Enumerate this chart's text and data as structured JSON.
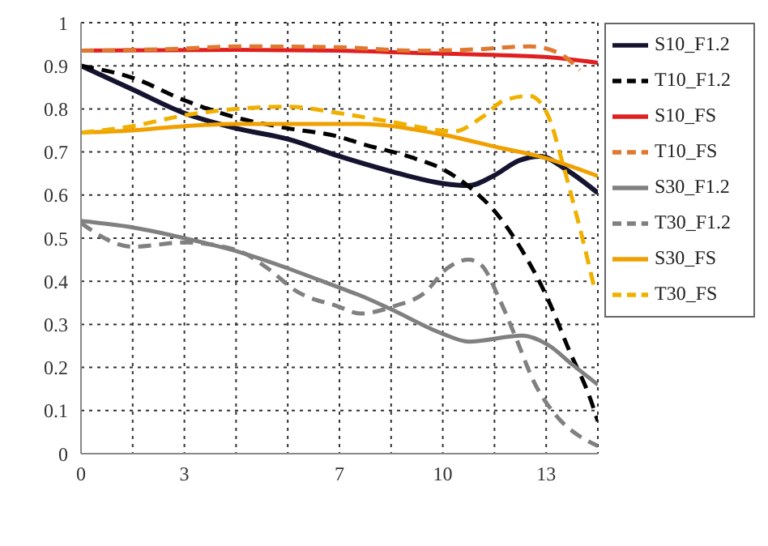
{
  "chart_data": {
    "type": "line",
    "xlim": [
      0,
      14.4
    ],
    "ylim": [
      0,
      1
    ],
    "xticks": [
      0,
      {
        "value": 1.44,
        "label": null
      },
      {
        "value": 2.88,
        "label": "3"
      },
      {
        "value": 4.32,
        "label": null
      },
      {
        "value": 5.76,
        "label": null
      },
      {
        "value": 7.2,
        "label": "7"
      },
      {
        "value": 8.64,
        "label": null
      },
      {
        "value": 10.08,
        "label": "10"
      },
      {
        "value": 11.52,
        "label": null
      },
      {
        "value": 12.96,
        "label": "13"
      },
      {
        "value": 14.4,
        "label": null
      }
    ],
    "yticks": [
      0,
      0.1,
      0.2,
      0.3,
      0.4,
      0.5,
      0.6,
      0.7,
      0.8,
      0.9,
      1
    ],
    "grid": true,
    "legend": "top right",
    "marker": "none",
    "series": [
      {
        "name": "S10_F1.2",
        "color": "#141430",
        "line_style": "solid",
        "x": [
          0,
          1.44,
          2.88,
          4.32,
          5.76,
          7.2,
          8.64,
          10.08,
          10.8,
          11.5,
          12.2,
          12.8,
          13.5,
          14.4
        ],
        "values": [
          0.9,
          0.845,
          0.79,
          0.755,
          0.73,
          0.69,
          0.655,
          0.627,
          0.622,
          0.645,
          0.68,
          0.69,
          0.66,
          0.605
        ]
      },
      {
        "name": "T10_F1.2",
        "color": "#000000",
        "line_style": "dashed",
        "x": [
          0,
          1.44,
          2.88,
          4.32,
          5.76,
          7.2,
          7.78,
          9.3,
          10.08,
          10.8,
          11.6,
          12.3,
          13.0,
          13.6,
          14.2,
          14.4
        ],
        "values": [
          0.9,
          0.872,
          0.82,
          0.78,
          0.755,
          0.735,
          0.72,
          0.685,
          0.66,
          0.62,
          0.555,
          0.47,
          0.36,
          0.24,
          0.125,
          0.075
        ]
      },
      {
        "name": "S10_FS",
        "color": "#e02020",
        "line_style": "solid",
        "x": [
          0,
          4.32,
          7.2,
          9.3,
          11.6,
          13.0,
          14.4
        ],
        "values": [
          0.935,
          0.937,
          0.935,
          0.93,
          0.925,
          0.92,
          0.907
        ]
      },
      {
        "name": "T10_FS",
        "color": "#e07830",
        "line_style": "dashed",
        "x": [
          0,
          2.88,
          4.32,
          7.2,
          9.3,
          11.0,
          12.5,
          13.3,
          13.9
        ],
        "values": [
          0.935,
          0.94,
          0.945,
          0.943,
          0.935,
          0.938,
          0.945,
          0.93,
          0.89
        ]
      },
      {
        "name": "S30_F1.2",
        "color": "#808080",
        "line_style": "solid",
        "x": [
          0,
          1.44,
          2.88,
          4.32,
          5.76,
          7.2,
          7.78,
          8.64,
          10.08,
          10.8,
          12.3,
          13.0,
          13.7,
          14.4
        ],
        "values": [
          0.54,
          0.525,
          0.5,
          0.47,
          0.43,
          0.385,
          0.367,
          0.335,
          0.278,
          0.26,
          0.274,
          0.253,
          0.206,
          0.16
        ]
      },
      {
        "name": "T30_F1.2",
        "color": "#808080",
        "line_style": "dashed",
        "x": [
          0,
          1.44,
          2.88,
          4.32,
          5.2,
          6.0,
          7.15,
          7.78,
          8.75,
          9.57,
          10.2,
          10.8,
          11.16,
          11.65,
          12.13,
          12.6,
          13.24,
          13.9,
          14.4
        ],
        "values": [
          0.535,
          0.48,
          0.49,
          0.473,
          0.43,
          0.377,
          0.342,
          0.325,
          0.343,
          0.373,
          0.43,
          0.45,
          0.437,
          0.36,
          0.266,
          0.17,
          0.088,
          0.04,
          0.018
        ]
      },
      {
        "name": "S30_FS",
        "color": "#f0a000",
        "line_style": "solid",
        "x": [
          0,
          1.44,
          2.88,
          4.32,
          5.76,
          7.78,
          10.08,
          11.65,
          12.76,
          14.4
        ],
        "values": [
          0.745,
          0.75,
          0.76,
          0.765,
          0.765,
          0.765,
          0.74,
          0.71,
          0.69,
          0.644
        ]
      },
      {
        "name": "T30_FS",
        "color": "#f0b000",
        "line_style": "dashed",
        "x": [
          0,
          1.44,
          2.88,
          4.32,
          5.76,
          7.2,
          8.64,
          10.4,
          11.16,
          11.8,
          12.5,
          13.0,
          13.4,
          13.7,
          14.0,
          14.3
        ],
        "values": [
          0.745,
          0.76,
          0.785,
          0.8,
          0.805,
          0.79,
          0.77,
          0.748,
          0.78,
          0.82,
          0.83,
          0.787,
          0.68,
          0.587,
          0.49,
          0.385
        ]
      }
    ]
  }
}
